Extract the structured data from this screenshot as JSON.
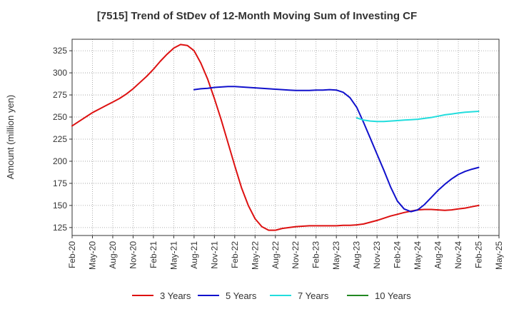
{
  "chart_data": {
    "type": "line",
    "title": "[7515]  Trend of StDev of 12-Month Moving Sum of Investing CF",
    "ylabel": "Amount (million yen)",
    "xlabel": "",
    "ylim": [
      116,
      338
    ],
    "yticks": [
      125,
      150,
      175,
      200,
      225,
      250,
      275,
      300,
      325
    ],
    "xlim": [
      "2020-02",
      "2025-05"
    ],
    "xticks": [
      "Feb-20",
      "May-20",
      "Aug-20",
      "Nov-20",
      "Feb-21",
      "May-21",
      "Aug-21",
      "Nov-21",
      "Feb-22",
      "May-22",
      "Aug-22",
      "Nov-22",
      "Feb-23",
      "May-23",
      "Aug-23",
      "Nov-23",
      "Feb-24",
      "May-24",
      "Aug-24",
      "Nov-24",
      "Feb-25",
      "May-25"
    ],
    "grid": true,
    "legend_position": "bottom",
    "series": [
      {
        "name": "3 Years",
        "color": "#dd1111",
        "points": [
          [
            "2020-02",
            240
          ],
          [
            "2020-03",
            245
          ],
          [
            "2020-04",
            250
          ],
          [
            "2020-05",
            255
          ],
          [
            "2020-06",
            259
          ],
          [
            "2020-07",
            263
          ],
          [
            "2020-08",
            267
          ],
          [
            "2020-09",
            271
          ],
          [
            "2020-10",
            276
          ],
          [
            "2020-11",
            282
          ],
          [
            "2020-12",
            289
          ],
          [
            "2021-01",
            296
          ],
          [
            "2021-02",
            304
          ],
          [
            "2021-03",
            313
          ],
          [
            "2021-04",
            321
          ],
          [
            "2021-05",
            328
          ],
          [
            "2021-06",
            332
          ],
          [
            "2021-07",
            331
          ],
          [
            "2021-08",
            325
          ],
          [
            "2021-09",
            311
          ],
          [
            "2021-10",
            293
          ],
          [
            "2021-11",
            271
          ],
          [
            "2021-12",
            247
          ],
          [
            "2022-01",
            221
          ],
          [
            "2022-02",
            195
          ],
          [
            "2022-03",
            170
          ],
          [
            "2022-04",
            150
          ],
          [
            "2022-05",
            135
          ],
          [
            "2022-06",
            126
          ],
          [
            "2022-07",
            122
          ],
          [
            "2022-08",
            122
          ],
          [
            "2022-09",
            124
          ],
          [
            "2022-10",
            125
          ],
          [
            "2022-11",
            126
          ],
          [
            "2022-12",
            126.5
          ],
          [
            "2023-01",
            127
          ],
          [
            "2023-02",
            127
          ],
          [
            "2023-03",
            127
          ],
          [
            "2023-04",
            127
          ],
          [
            "2023-05",
            127
          ],
          [
            "2023-06",
            127.5
          ],
          [
            "2023-07",
            127.5
          ],
          [
            "2023-08",
            128
          ],
          [
            "2023-09",
            129
          ],
          [
            "2023-10",
            131
          ],
          [
            "2023-11",
            133
          ],
          [
            "2023-12",
            135.5
          ],
          [
            "2024-01",
            138
          ],
          [
            "2024-02",
            140
          ],
          [
            "2024-03",
            142
          ],
          [
            "2024-04",
            143.5
          ],
          [
            "2024-05",
            145
          ],
          [
            "2024-06",
            145.5
          ],
          [
            "2024-07",
            145.5
          ],
          [
            "2024-08",
            145
          ],
          [
            "2024-09",
            144.5
          ],
          [
            "2024-10",
            145
          ],
          [
            "2024-11",
            146
          ],
          [
            "2024-12",
            147
          ],
          [
            "2025-01",
            148.5
          ],
          [
            "2025-02",
            150
          ]
        ]
      },
      {
        "name": "5 Years",
        "color": "#1111cc",
        "points": [
          [
            "2021-08",
            281
          ],
          [
            "2021-09",
            282
          ],
          [
            "2021-10",
            282.5
          ],
          [
            "2021-11",
            283.5
          ],
          [
            "2021-12",
            284
          ],
          [
            "2022-01",
            284.5
          ],
          [
            "2022-02",
            284.5
          ],
          [
            "2022-03",
            284
          ],
          [
            "2022-04",
            283.5
          ],
          [
            "2022-05",
            283
          ],
          [
            "2022-06",
            282.5
          ],
          [
            "2022-07",
            282
          ],
          [
            "2022-08",
            281.5
          ],
          [
            "2022-09",
            281
          ],
          [
            "2022-10",
            280.5
          ],
          [
            "2022-11",
            280
          ],
          [
            "2022-12",
            280
          ],
          [
            "2023-01",
            280
          ],
          [
            "2023-02",
            280.5
          ],
          [
            "2023-03",
            280.5
          ],
          [
            "2023-04",
            281
          ],
          [
            "2023-05",
            280.5
          ],
          [
            "2023-06",
            278
          ],
          [
            "2023-07",
            272
          ],
          [
            "2023-08",
            261
          ],
          [
            "2023-09",
            244
          ],
          [
            "2023-10",
            226
          ],
          [
            "2023-11",
            208
          ],
          [
            "2023-12",
            190
          ],
          [
            "2024-01",
            171
          ],
          [
            "2024-02",
            155
          ],
          [
            "2024-03",
            146
          ],
          [
            "2024-04",
            143
          ],
          [
            "2024-05",
            145
          ],
          [
            "2024-06",
            151
          ],
          [
            "2024-07",
            159
          ],
          [
            "2024-08",
            167
          ],
          [
            "2024-09",
            174
          ],
          [
            "2024-10",
            180
          ],
          [
            "2024-11",
            185
          ],
          [
            "2024-12",
            188.5
          ],
          [
            "2025-01",
            191
          ],
          [
            "2025-02",
            193
          ]
        ]
      },
      {
        "name": "7 Years",
        "color": "#22dddd",
        "points": [
          [
            "2023-08",
            249
          ],
          [
            "2023-09",
            246.5
          ],
          [
            "2023-10",
            245.5
          ],
          [
            "2023-11",
            245
          ],
          [
            "2023-12",
            245
          ],
          [
            "2024-01",
            245.5
          ],
          [
            "2024-02",
            246
          ],
          [
            "2024-03",
            246.5
          ],
          [
            "2024-04",
            247
          ],
          [
            "2024-05",
            247.5
          ],
          [
            "2024-06",
            248.5
          ],
          [
            "2024-07",
            249.5
          ],
          [
            "2024-08",
            251
          ],
          [
            "2024-09",
            252.5
          ],
          [
            "2024-10",
            253.5
          ],
          [
            "2024-11",
            254.5
          ],
          [
            "2024-12",
            255.5
          ],
          [
            "2025-01",
            256
          ],
          [
            "2025-02",
            256.5
          ]
        ]
      },
      {
        "name": "10 Years",
        "color": "#228822",
        "points": []
      }
    ]
  }
}
